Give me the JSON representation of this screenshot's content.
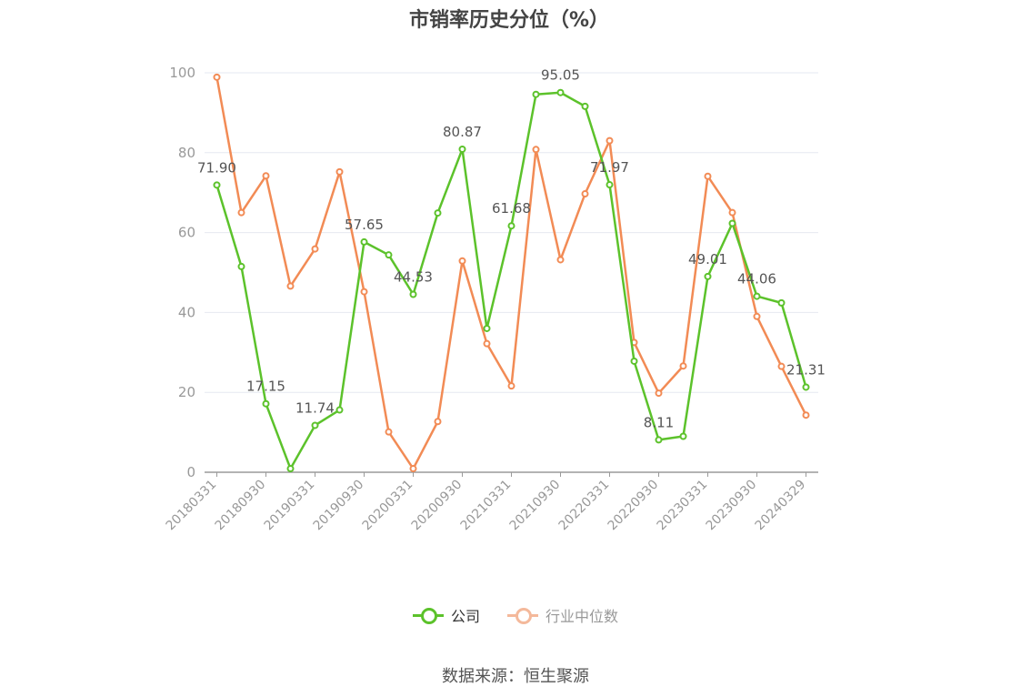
{
  "title": "市销率历史分位（%）",
  "source": "数据来源：恒生聚源",
  "colors": {
    "company": "#5cc22b",
    "industry": "#f28b55",
    "grid": "#e6e9f0",
    "axis": "#9a9a9a"
  },
  "legend": [
    {
      "label": "公司",
      "color": "#5cc22b"
    },
    {
      "label": "行业中位数",
      "color": "#f4b99b"
    }
  ],
  "chart_data": {
    "type": "line",
    "ylim": [
      0,
      100
    ],
    "yticks": [
      0,
      20,
      40,
      60,
      80,
      100
    ],
    "grid": true,
    "legend_position": "bottom",
    "x": [
      "20180331",
      "20180630",
      "20180930",
      "20181231",
      "20190331",
      "20190630",
      "20190930",
      "20191231",
      "20200331",
      "20200630",
      "20200930",
      "20201231",
      "20210331",
      "20210630",
      "20210930",
      "20211231",
      "20220331",
      "20220630",
      "20220930",
      "20221231",
      "20230331",
      "20230630",
      "20230930",
      "20231231",
      "20240329"
    ],
    "xticks": [
      "20180331",
      "20180930",
      "20190331",
      "20190930",
      "20200331",
      "20200930",
      "20210331",
      "20210930",
      "20220331",
      "20220930",
      "20230331",
      "20230930",
      "20240329"
    ],
    "series": [
      {
        "name": "公司",
        "color": "#5cc22b",
        "values": [
          71.9,
          51.5,
          17.15,
          0.9,
          11.74,
          15.6,
          57.65,
          54.4,
          44.53,
          64.9,
          80.87,
          36.0,
          61.68,
          94.6,
          95.05,
          91.6,
          71.97,
          27.8,
          8.11,
          9.0,
          49.01,
          62.3,
          44.06,
          42.4,
          21.31
        ],
        "labels": {
          "0": "71.90",
          "2": "17.15",
          "4": "11.74",
          "6": "57.65",
          "8": "44.53",
          "10": "80.87",
          "12": "61.68",
          "14": "95.05",
          "16": "71.97",
          "18": "8.11",
          "20": "49.01",
          "22": "44.06",
          "24": "21.31"
        }
      },
      {
        "name": "行业中位数",
        "color": "#f28b55",
        "values": [
          98.9,
          65.0,
          74.2,
          46.6,
          55.9,
          75.2,
          45.2,
          10.1,
          0.9,
          12.7,
          52.9,
          32.2,
          21.6,
          80.8,
          53.2,
          69.7,
          83.0,
          32.5,
          19.8,
          26.6,
          74.1,
          65.0,
          39.0,
          26.5,
          14.3
        ]
      }
    ]
  }
}
